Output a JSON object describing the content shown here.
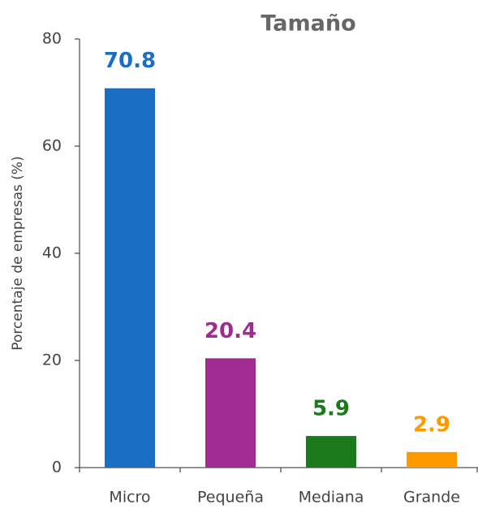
{
  "chart_data": {
    "type": "bar",
    "title": "Tamaño",
    "y_label": "Porcentaje de empresas (%)",
    "categories": [
      "Micro",
      "Pequeña",
      "Mediana",
      "Grande"
    ],
    "values": [
      70.8,
      20.4,
      5.9,
      2.9
    ],
    "colors": [
      "#1a6fc4",
      "#a02b93",
      "#1b7a1b",
      "#ff9900"
    ],
    "ylim": [
      0,
      80
    ],
    "yticks": [
      0,
      20,
      40,
      60,
      80
    ],
    "grid": false
  }
}
